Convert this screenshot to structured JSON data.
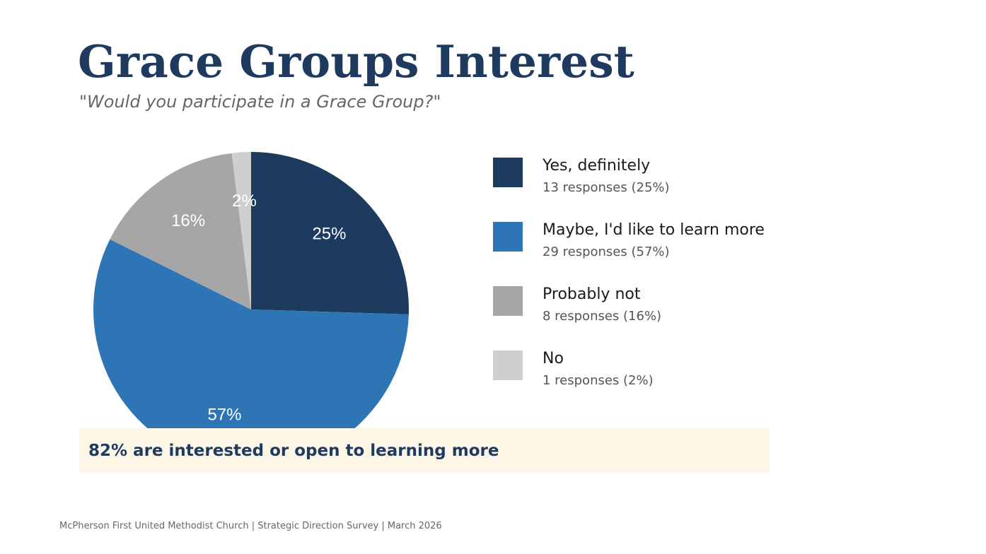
{
  "slide": {
    "title": "Grace Groups Interest",
    "subtitle": "\"Would you participate in a Grace Group?\"",
    "callout": "82% are interested or open to learning more",
    "footer": "McPherson First United Methodist Church  |  Strategic Direction Survey  |  March 2026"
  },
  "chart_data": {
    "type": "pie",
    "categories": [
      "Yes, definitely",
      "Maybe, I'd like to learn more",
      "Probably not",
      "No"
    ],
    "values": [
      13,
      29,
      8,
      1
    ],
    "percent_labels": [
      "25%",
      "57%",
      "16%",
      "2%"
    ],
    "colors": [
      "#1d3a5f",
      "#2e75b6",
      "#a6a6a6",
      "#cfcfcf"
    ],
    "legend": [
      {
        "label": "Yes, definitely",
        "detail": "13 responses (25%)"
      },
      {
        "label": "Maybe, I'd like to learn more",
        "detail": "29 responses (57%)"
      },
      {
        "label": "Probably not",
        "detail": "8 responses (16%)"
      },
      {
        "label": "No",
        "detail": "1 responses (2%)"
      }
    ],
    "legend_placement": "right"
  }
}
